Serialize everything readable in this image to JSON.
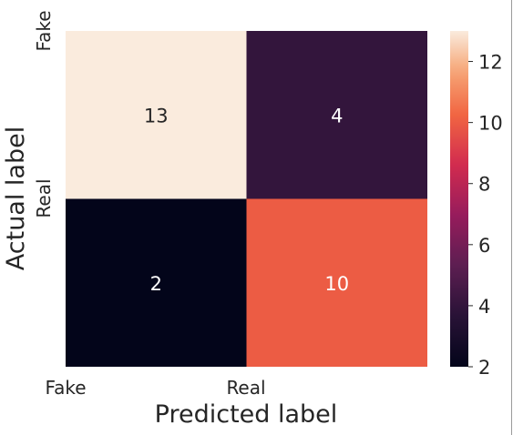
{
  "chart_data": {
    "type": "heatmap",
    "title": "",
    "xlabel": "Predicted label",
    "ylabel": "Actual label",
    "x_categories": [
      "Fake",
      "Real"
    ],
    "y_categories": [
      "Fake",
      "Real"
    ],
    "values": [
      [
        13,
        4
      ],
      [
        2,
        10
      ]
    ],
    "colorbar": {
      "range": [
        2,
        13
      ],
      "ticks": [
        2,
        4,
        6,
        8,
        10,
        12
      ],
      "colormap": "rocket"
    }
  }
}
